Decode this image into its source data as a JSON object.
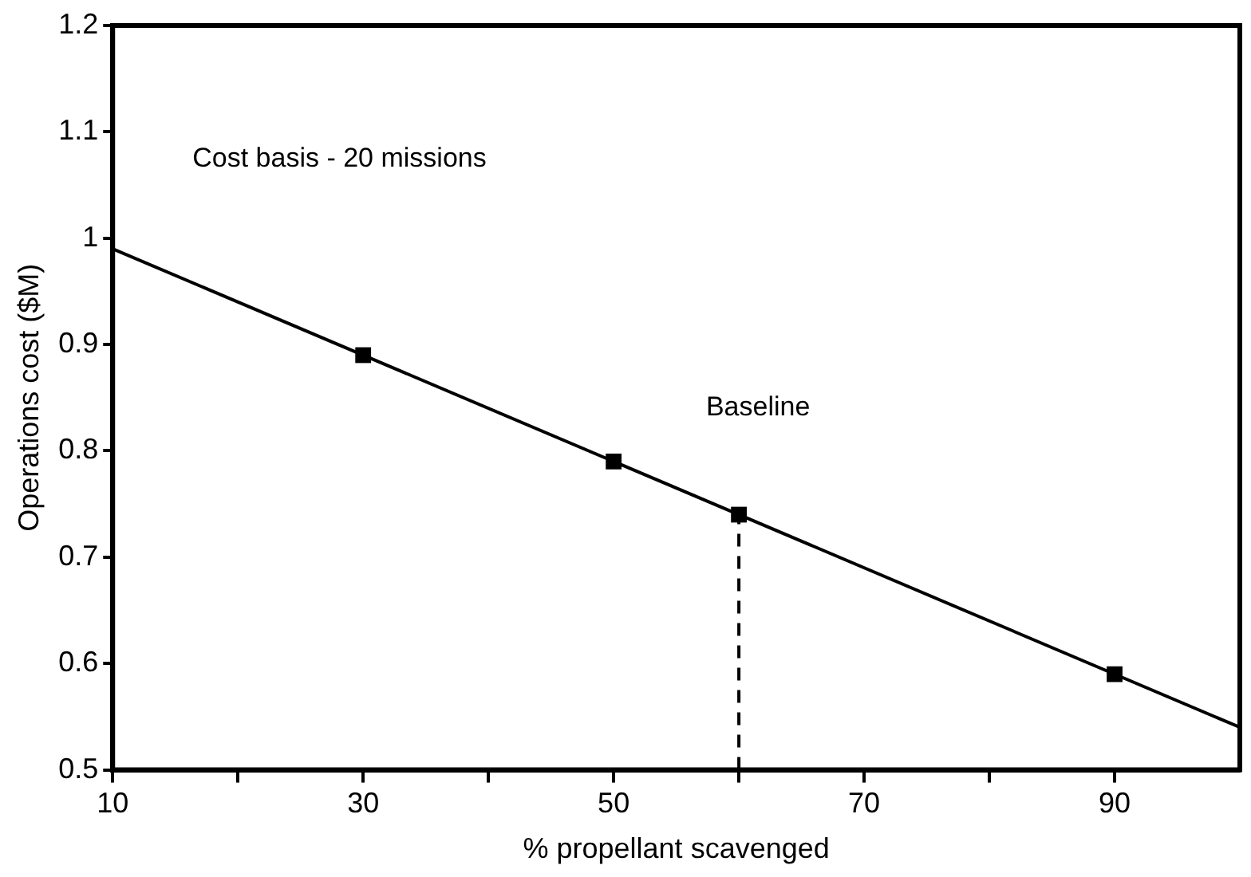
{
  "chart_data": {
    "type": "line",
    "xlabel": "% propellant scavenged",
    "ylabel": "Operations cost ($M)",
    "xlim": [
      10,
      100
    ],
    "xticks": [
      10,
      {
        "value": 20,
        "label": null
      },
      30,
      {
        "value": 40,
        "label": null
      },
      50,
      {
        "value": 60,
        "label": null
      },
      70,
      {
        "value": 80,
        "label": null
      },
      90
    ],
    "ylim": [
      0.5,
      1.2
    ],
    "yticks": [
      0.5,
      0.6,
      0.7,
      0.8,
      0.9,
      1,
      1.1,
      1.2
    ],
    "grid": false,
    "legend": false,
    "series": [
      {
        "color": "#000000",
        "x": [
          10,
          100
        ],
        "values": [
          0.99,
          0.54
        ],
        "marker": "none",
        "line_style": "solid"
      },
      {
        "type": "scatter",
        "color": "#000000",
        "x": [
          30,
          50,
          60,
          90
        ],
        "values": [
          0.89,
          0.79,
          0.74,
          0.59
        ],
        "marker": "square"
      }
    ],
    "ref_lines": [
      {
        "axis": "x",
        "value": 60,
        "line_style": "dashed",
        "color": "#000000",
        "label": "Baseline"
      }
    ],
    "annotations": [
      "Cost basis - 20 missions"
    ]
  }
}
